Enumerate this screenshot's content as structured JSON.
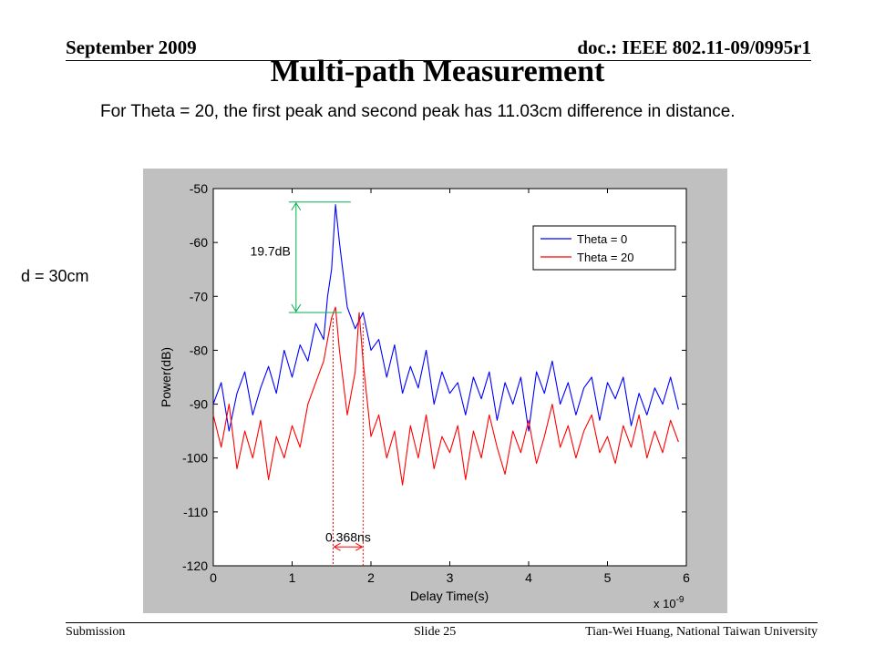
{
  "header": {
    "date": "September 2009",
    "doc": "doc.: IEEE 802.11-09/0995r1"
  },
  "title": "Multi-path Measurement",
  "subtitle": "For Theta = 20, the first peak and second peak has 11.03cm difference in distance.",
  "side_label": "d = 30cm",
  "footer": {
    "left": "Submission",
    "center": "Slide 25",
    "right": "Tian-Wei Huang, National Taiwan University"
  },
  "chart_data": {
    "type": "line",
    "xlabel": "Delay Time(s)",
    "ylabel": "Power(dB)",
    "x_multiplier": "x 10",
    "x_multiplier_exp": "-9",
    "xlim": [
      0,
      6
    ],
    "ylim": [
      -120,
      -50
    ],
    "xticks": [
      0,
      1,
      2,
      3,
      4,
      5,
      6
    ],
    "yticks": [
      -50,
      -60,
      -70,
      -80,
      -90,
      -100,
      -110,
      -120
    ],
    "xtick_labels": [
      "0",
      "1",
      "2",
      "3",
      "4",
      "5",
      "6"
    ],
    "ytick_labels": [
      "-50",
      "-60",
      "-70",
      "-80",
      "-90",
      "-100",
      "-110",
      "-120"
    ],
    "legend_position": "top-right",
    "series": [
      {
        "name": "Theta = 0",
        "color": "#0000ff",
        "x": [
          0,
          0.1,
          0.2,
          0.3,
          0.4,
          0.5,
          0.6,
          0.7,
          0.8,
          0.9,
          1.0,
          1.1,
          1.2,
          1.3,
          1.4,
          1.45,
          1.5,
          1.55,
          1.6,
          1.65,
          1.7,
          1.8,
          1.9,
          2.0,
          2.1,
          2.2,
          2.3,
          2.4,
          2.5,
          2.6,
          2.7,
          2.8,
          2.9,
          3.0,
          3.1,
          3.2,
          3.3,
          3.4,
          3.5,
          3.6,
          3.7,
          3.8,
          3.9,
          4.0,
          4.1,
          4.2,
          4.3,
          4.4,
          4.5,
          4.6,
          4.7,
          4.8,
          4.9,
          5.0,
          5.1,
          5.2,
          5.3,
          5.4,
          5.5,
          5.6,
          5.7,
          5.8,
          5.9
        ],
        "y": [
          -90,
          -86,
          -95,
          -88,
          -84,
          -92,
          -87,
          -83,
          -88,
          -80,
          -85,
          -79,
          -82,
          -75,
          -78,
          -70,
          -65,
          -53,
          -60,
          -66,
          -72,
          -76,
          -73,
          -80,
          -78,
          -85,
          -79,
          -88,
          -83,
          -87,
          -80,
          -90,
          -84,
          -88,
          -86,
          -92,
          -85,
          -89,
          -84,
          -93,
          -86,
          -90,
          -85,
          -95,
          -84,
          -88,
          -82,
          -90,
          -86,
          -92,
          -87,
          -85,
          -93,
          -86,
          -89,
          -85,
          -94,
          -88,
          -92,
          -87,
          -90,
          -85,
          -91
        ]
      },
      {
        "name": "Theta = 20",
        "color": "#ff0000",
        "x": [
          0,
          0.1,
          0.2,
          0.3,
          0.4,
          0.5,
          0.6,
          0.7,
          0.8,
          0.9,
          1.0,
          1.1,
          1.2,
          1.3,
          1.4,
          1.5,
          1.55,
          1.6,
          1.7,
          1.8,
          1.85,
          1.9,
          2.0,
          2.1,
          2.2,
          2.3,
          2.4,
          2.5,
          2.6,
          2.7,
          2.8,
          2.9,
          3.0,
          3.1,
          3.2,
          3.3,
          3.4,
          3.5,
          3.6,
          3.7,
          3.8,
          3.9,
          4.0,
          4.1,
          4.2,
          4.3,
          4.4,
          4.5,
          4.6,
          4.7,
          4.8,
          4.9,
          5.0,
          5.1,
          5.2,
          5.3,
          5.4,
          5.5,
          5.6,
          5.7,
          5.8,
          5.9
        ],
        "y": [
          -92,
          -98,
          -90,
          -102,
          -95,
          -100,
          -93,
          -104,
          -96,
          -100,
          -94,
          -98,
          -90,
          -86,
          -82,
          -74,
          -72,
          -80,
          -92,
          -84,
          -73,
          -82,
          -96,
          -92,
          -100,
          -95,
          -105,
          -94,
          -100,
          -92,
          -102,
          -96,
          -99,
          -94,
          -104,
          -95,
          -100,
          -92,
          -98,
          -103,
          -95,
          -99,
          -93,
          -101,
          -96,
          -90,
          -98,
          -94,
          -100,
          -95,
          -92,
          -99,
          -96,
          -101,
          -94,
          -98,
          -92,
          -100,
          -95,
          -99,
          -93,
          -97
        ]
      }
    ],
    "annotations": [
      {
        "text": "19.7dB",
        "type": "vertical-arrow",
        "x": 1.05,
        "y_top": -52.5,
        "y_bottom": -73
      },
      {
        "text": "0.368ns",
        "type": "horizontal-arrow",
        "x_left": 1.52,
        "x_right": 1.9,
        "y": -116.5
      }
    ]
  }
}
